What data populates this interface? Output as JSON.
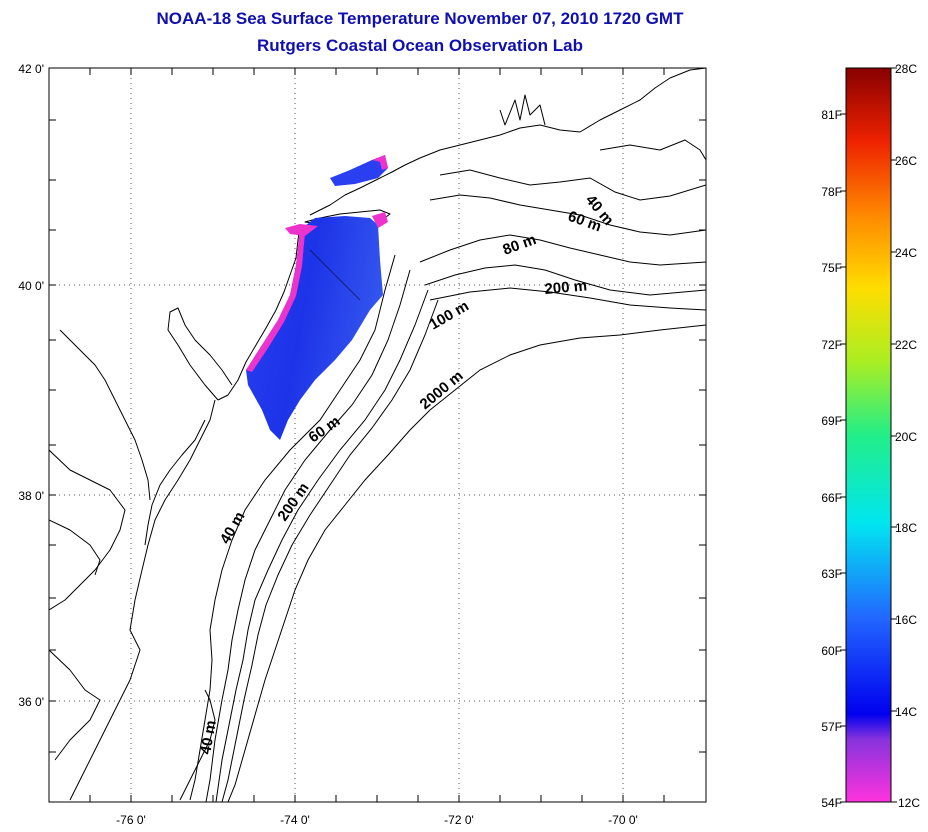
{
  "title": "NOAA-18 Sea Surface Temperature November 07, 2010 1720 GMT",
  "subtitle": "Rutgers Coastal Ocean Observation Lab",
  "map": {
    "lat_range": [
      35,
      42
    ],
    "lon_range": [
      -77,
      -69
    ],
    "lat_labels": [
      "42 0'",
      "40 0'",
      "38 0'",
      "36 0'"
    ],
    "lon_labels": [
      "-76 0'",
      "-74 0'",
      "-72 0'",
      "-70 0'"
    ],
    "grid": "dotted",
    "depth_contours": [
      {
        "label": "40 m"
      },
      {
        "label": "60 m"
      },
      {
        "label": "80 m"
      },
      {
        "label": "200 m"
      },
      {
        "label": "100 m"
      },
      {
        "label": "2000 m"
      },
      {
        "label": "60 m"
      },
      {
        "label": "40 m"
      },
      {
        "label": "200 m"
      },
      {
        "label": "40 m"
      }
    ]
  },
  "colorbar": {
    "celsius_labels": [
      "28C",
      "26C",
      "24C",
      "22C",
      "20C",
      "18C",
      "16C",
      "14C",
      "12C"
    ],
    "fahrenheit_labels": [
      "81F",
      "78F",
      "75F",
      "72F",
      "69F",
      "66F",
      "63F",
      "60F",
      "57F",
      "54F"
    ],
    "range_c": [
      12,
      28
    ]
  },
  "colors": {
    "title": "#1010b0",
    "sst_cool": "#2233ee",
    "sst_cold_edge": "#ee33cc"
  }
}
